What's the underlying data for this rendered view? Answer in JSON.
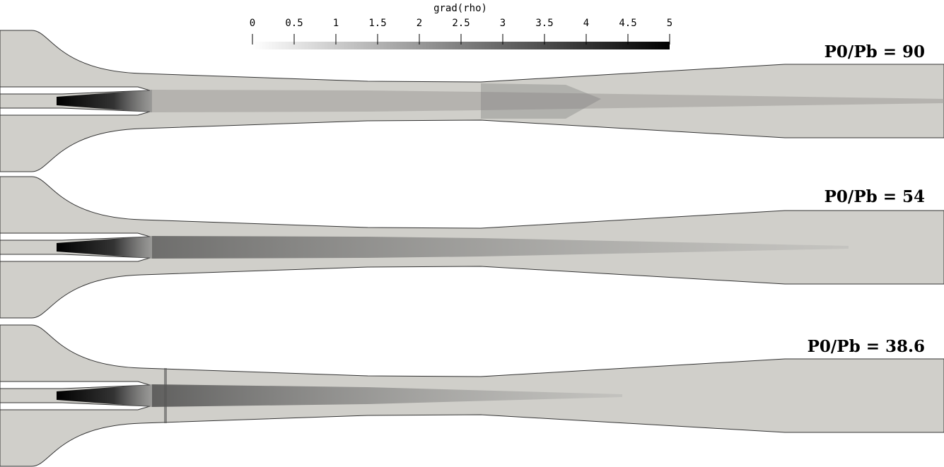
{
  "colorbar": {
    "title": "grad(rho)",
    "range": [
      0,
      5
    ],
    "ticks": [
      0,
      0.5,
      1,
      1.5,
      2,
      2.5,
      3,
      3.5,
      4,
      4.5,
      5
    ]
  },
  "panels": [
    {
      "label": "P0/Pb = 90"
    },
    {
      "label": "P0/Pb = 54"
    },
    {
      "label": "P0/Pb = 38.6"
    }
  ]
}
